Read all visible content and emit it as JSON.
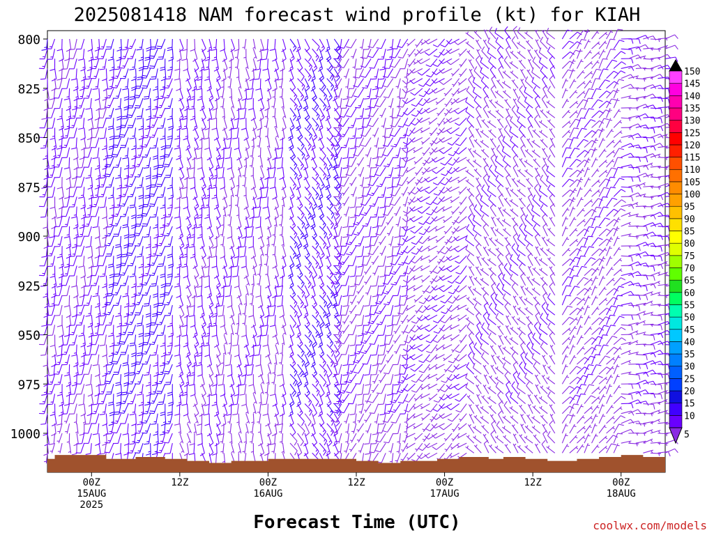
{
  "chart_data": {
    "type": "wind_barb_time_height",
    "title": "2025081418 NAM forecast wind profile (kt) for KIAH",
    "xlabel": "Forecast Time (UTC)",
    "ylabel": "",
    "credit": "coolwx.com/models",
    "y_axis": {
      "scale": "pressure_hPa",
      "inverted": true,
      "ylim": [
        800,
        1018
      ],
      "ticks": [
        "800",
        "825",
        "850",
        "875",
        "900",
        "925",
        "950",
        "975",
        "1000"
      ],
      "levels": [
        800,
        805,
        810,
        815,
        820,
        825,
        830,
        835,
        840,
        845,
        850,
        855,
        860,
        865,
        870,
        875,
        880,
        885,
        890,
        895,
        900,
        905,
        910,
        915,
        920,
        925,
        930,
        935,
        940,
        945,
        950,
        955,
        960,
        965,
        970,
        975,
        980,
        985,
        990,
        995,
        1000,
        1005,
        1010,
        1015
      ]
    },
    "x_axis": {
      "start": "2025-08-14 18Z",
      "end": "2025-08-18 06Z",
      "step_hours": 1,
      "ticks": [
        {
          "hour": 6,
          "lines": [
            "00Z",
            "15AUG",
            "2025"
          ]
        },
        {
          "hour": 18,
          "lines": [
            "12Z"
          ]
        },
        {
          "hour": 30,
          "lines": [
            "00Z",
            "16AUG"
          ]
        },
        {
          "hour": 42,
          "lines": [
            "12Z"
          ]
        },
        {
          "hour": 54,
          "lines": [
            "00Z",
            "17AUG"
          ]
        },
        {
          "hour": 66,
          "lines": [
            "12Z"
          ]
        },
        {
          "hour": 78,
          "lines": [
            "00Z",
            "18AUG"
          ]
        }
      ]
    },
    "colorbar": {
      "units": "kt",
      "levels": [
        5,
        10,
        15,
        20,
        25,
        30,
        35,
        40,
        45,
        50,
        55,
        60,
        65,
        70,
        75,
        80,
        85,
        90,
        95,
        100,
        105,
        110,
        115,
        120,
        125,
        130,
        135,
        140,
        145,
        150
      ],
      "colors": [
        "#8a2be2",
        "#6a00ff",
        "#4000ff",
        "#1010e0",
        "#0040ff",
        "#0060ff",
        "#0080ff",
        "#00a0ff",
        "#00c8ff",
        "#00e8e0",
        "#00ffb0",
        "#00ff60",
        "#20e020",
        "#60ff00",
        "#a0ff00",
        "#e0ff00",
        "#ffff00",
        "#ffe000",
        "#ffc000",
        "#ffa000",
        "#ff8c00",
        "#ff7000",
        "#ff5000",
        "#ff2000",
        "#ff0000",
        "#ff0040",
        "#ff0080",
        "#ff00b0",
        "#ff00e0",
        "#ff40ff"
      ]
    },
    "surface_pressure": [
      {
        "hour": 0,
        "p": 1013
      },
      {
        "hour": 1,
        "p": 1011
      },
      {
        "hour": 7,
        "p": 1011
      },
      {
        "hour": 8,
        "p": 1013
      },
      {
        "hour": 12,
        "p": 1012
      },
      {
        "hour": 16,
        "p": 1013
      },
      {
        "hour": 19,
        "p": 1014
      },
      {
        "hour": 22,
        "p": 1015
      },
      {
        "hour": 25,
        "p": 1014
      },
      {
        "hour": 30,
        "p": 1013
      },
      {
        "hour": 38,
        "p": 1013
      },
      {
        "hour": 42,
        "p": 1014
      },
      {
        "hour": 45,
        "p": 1015
      },
      {
        "hour": 48,
        "p": 1014
      },
      {
        "hour": 53,
        "p": 1013
      },
      {
        "hour": 56,
        "p": 1012
      },
      {
        "hour": 60,
        "p": 1013
      },
      {
        "hour": 62,
        "p": 1012
      },
      {
        "hour": 65,
        "p": 1013
      },
      {
        "hour": 68,
        "p": 1014
      },
      {
        "hour": 72,
        "p": 1013
      },
      {
        "hour": 75,
        "p": 1012
      },
      {
        "hour": 78,
        "p": 1011
      },
      {
        "hour": 81,
        "p": 1012
      },
      {
        "hour": 84,
        "p": 1012
      }
    ],
    "wind_regimes": [
      {
        "hours": [
          0,
          9
        ],
        "dir_deg": 185,
        "speed_kt": 12
      },
      {
        "hours": [
          9,
          18
        ],
        "dir_deg": 190,
        "speed_kt": 17
      },
      {
        "hours": [
          18,
          24
        ],
        "dir_deg": 170,
        "speed_kt": 12
      },
      {
        "hours": [
          24,
          33
        ],
        "dir_deg": 175,
        "speed_kt": 9
      },
      {
        "hours": [
          33,
          40
        ],
        "dir_deg": 150,
        "speed_kt": 15
      },
      {
        "hours": [
          40,
          50
        ],
        "dir_deg": 200,
        "speed_kt": 10
      },
      {
        "hours": [
          50,
          58
        ],
        "dir_deg": 230,
        "speed_kt": 9
      },
      {
        "hours": [
          58,
          70
        ],
        "dir_deg": 320,
        "speed_kt": 8
      },
      {
        "hours": [
          70,
          78
        ],
        "dir_deg": 35,
        "speed_kt": 8
      },
      {
        "hours": [
          78,
          84
        ],
        "dir_deg": 80,
        "speed_kt": 9
      }
    ],
    "grid": false
  }
}
